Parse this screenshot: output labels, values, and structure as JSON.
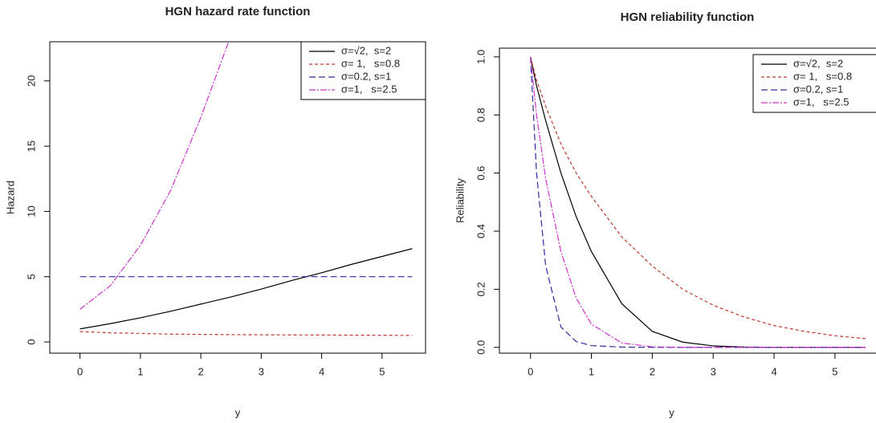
{
  "chart_data": [
    {
      "type": "line",
      "title": "HGN hazard rate function",
      "x_label": "y",
      "y_label": "Hazard",
      "x": [
        0,
        0.5,
        1,
        1.5,
        2,
        2.5,
        3,
        3.5,
        4,
        4.5,
        5,
        5.5
      ],
      "series": [
        {
          "name": "σ=√2,  s=2",
          "color": "#000000",
          "dash": "none",
          "values": [
            1.0,
            1.4,
            1.85,
            2.35,
            2.9,
            3.45,
            4.05,
            4.7,
            5.3,
            5.95,
            6.55,
            7.15
          ]
        },
        {
          "name": "σ= 1,   s=0.8",
          "color": "#c0392b",
          "dash": "4,3",
          "values": [
            0.8,
            0.7,
            0.65,
            0.6,
            0.58,
            0.56,
            0.55,
            0.54,
            0.53,
            0.52,
            0.51,
            0.5
          ]
        },
        {
          "name": "σ=0.2, s=1",
          "color": "#2c2c9c",
          "dash": "8,4",
          "values": [
            5,
            5,
            5,
            5,
            5,
            5,
            5,
            5,
            5,
            5,
            5,
            5
          ]
        },
        {
          "name": "σ=1,   s=2.5",
          "color": "#cc33cc",
          "dash": "8,2,2,2",
          "values": [
            2.5,
            4.3,
            7.4,
            11.6,
            17.2,
            23.5,
            null,
            null,
            null,
            null,
            null,
            null
          ]
        }
      ],
      "xlim": [
        -0.5,
        5.72
      ],
      "ylim": [
        -0.86,
        23.0
      ],
      "xticks": [
        0,
        1,
        2,
        3,
        4,
        5
      ],
      "yticks": [
        0,
        5,
        10,
        15,
        20
      ],
      "legend": "topright"
    },
    {
      "type": "line",
      "title": "HGN reliability function",
      "x_label": "y",
      "y_label": "Reliability",
      "x": [
        0,
        0.1,
        0.25,
        0.5,
        0.75,
        1,
        1.5,
        2,
        2.5,
        3,
        3.5,
        4,
        4.5,
        5,
        5.5
      ],
      "series": [
        {
          "name": "σ=√2,  s=2",
          "color": "#000000",
          "dash": "none",
          "values": [
            1,
            0.9,
            0.78,
            0.6,
            0.45,
            0.33,
            0.15,
            0.055,
            0.018,
            0.005,
            0.001,
            0,
            0,
            0,
            0
          ]
        },
        {
          "name": "σ= 1,   s=0.8",
          "color": "#c0392b",
          "dash": "4,3",
          "values": [
            1,
            0.92,
            0.83,
            0.7,
            0.6,
            0.52,
            0.38,
            0.28,
            0.2,
            0.145,
            0.105,
            0.075,
            0.055,
            0.04,
            0.03
          ]
        },
        {
          "name": "σ=0.2, s=1",
          "color": "#2c2c9c",
          "dash": "8,4",
          "values": [
            1,
            0.6,
            0.28,
            0.07,
            0.02,
            0.006,
            0.001,
            0,
            0,
            0,
            0,
            0,
            0,
            0,
            0
          ]
        },
        {
          "name": "σ=1,   s=2.5",
          "color": "#cc33cc",
          "dash": "8,2,2,2",
          "values": [
            1,
            0.8,
            0.58,
            0.33,
            0.17,
            0.08,
            0.015,
            0.002,
            0,
            0,
            0,
            0,
            0,
            0,
            0
          ]
        }
      ],
      "xlim": [
        -0.51,
        5.7
      ],
      "ylim": [
        -0.02,
        1.03
      ],
      "xticks": [
        0,
        1,
        2,
        3,
        4,
        5
      ],
      "yticks": [
        {
          "value": 0,
          "label": "0.0"
        },
        0.2,
        0.4,
        0.6,
        0.8,
        {
          "value": 1,
          "label": "1.0"
        }
      ],
      "legend": "topright"
    }
  ]
}
